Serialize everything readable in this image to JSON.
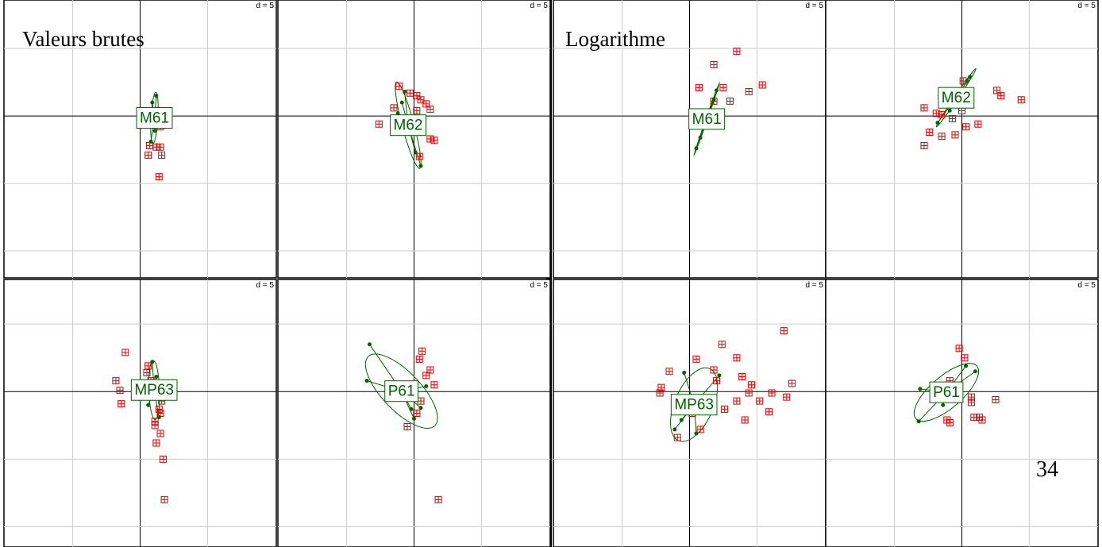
{
  "title_left": "Valeurs brutes",
  "title_right": "Logarithme",
  "page_number": "34",
  "chart_data": [
    {
      "type": "scatter",
      "label": "M61",
      "scale_label": "d = 5",
      "xlim": [
        -10.1,
        10.1
      ],
      "ylim": [
        -12,
        8.6
      ],
      "xticks": [
        -5,
        0,
        5
      ],
      "yticks": [
        -10,
        -5,
        0,
        5
      ],
      "grid": true,
      "color": "#e00000",
      "group_color": "#006400",
      "x": [
        0.7,
        1.5,
        1.2,
        0.6,
        1.6,
        1.4,
        1.5
      ],
      "y": [
        -2.2,
        -2.3,
        -2.3,
        -2.9,
        -2.9,
        -4.5,
        -0.8
      ],
      "group_x": [
        1.2,
        0.9,
        0.8,
        1.3,
        1.1
      ],
      "group_y": [
        1.5,
        1.0,
        -1.9,
        -0.2,
        -1.1
      ]
    },
    {
      "type": "scatter",
      "label": "M62",
      "scale_label": "d = 5",
      "xlim": [
        -10.1,
        10.1
      ],
      "ylim": [
        -12,
        8.6
      ],
      "xticks": [
        -5,
        0,
        5
      ],
      "yticks": [
        -10,
        -5,
        0,
        5
      ],
      "grid": true,
      "color": "#e00000",
      "group_color": "#006400",
      "x": [
        -1.1,
        -1.5,
        -2.6,
        -0.9,
        0.5,
        0.9,
        1.2,
        0.2,
        0.2,
        1.2,
        1.5,
        0.4,
        -0.3
      ],
      "y": [
        2.2,
        0.6,
        -0.6,
        -0.8,
        1.2,
        0.9,
        0.5,
        0.4,
        1.5,
        -1.7,
        -1.8,
        -3.0,
        1.7
      ],
      "group_x": [
        -0.9,
        -0.7,
        0.5,
        0.1,
        -1.2
      ],
      "group_y": [
        1.0,
        1.8,
        -3.7,
        -2.7,
        0.2
      ]
    },
    {
      "type": "scatter",
      "label": "M61",
      "scale_label": "d = 5",
      "xlim": [
        -10.1,
        10.1
      ],
      "ylim": [
        -12,
        8.6
      ],
      "xticks": [
        -5,
        0,
        5
      ],
      "yticks": [
        -10,
        -5,
        0,
        5
      ],
      "grid": true,
      "color": "#e00000",
      "group_color": "#006400",
      "x": [
        3.5,
        1.8,
        0.7,
        2.5,
        3.0,
        4.4,
        5.4,
        1.8,
        1.6
      ],
      "y": [
        4.8,
        3.8,
        2.1,
        2.1,
        1.1,
        1.8,
        2.3,
        1.1,
        -0.6
      ],
      "group_x": [
        2.0,
        0.5,
        0.8,
        1.8
      ],
      "group_y": [
        1.9,
        -2.4,
        -1.6,
        1.2
      ]
    },
    {
      "type": "scatter",
      "label": "M62",
      "scale_label": "d = 5",
      "xlim": [
        -10.1,
        10.1
      ],
      "ylim": [
        -12,
        8.6
      ],
      "xticks": [
        -5,
        0,
        5
      ],
      "yticks": [
        -10,
        -5,
        0,
        5
      ],
      "grid": true,
      "color": "#e00000",
      "group_color": "#006400",
      "x": [
        0.1,
        2.6,
        2.9,
        4.4,
        -2.8,
        -1.9,
        -1.5,
        -1.0,
        -2.4,
        -1.5,
        -0.5,
        0.3,
        1.2,
        -0.7,
        -2.8,
        0
      ],
      "y": [
        2.6,
        1.9,
        1.5,
        1.2,
        0.6,
        0.2,
        0.1,
        1.0,
        -1.2,
        -1.5,
        -1.4,
        -0.8,
        -0.6,
        -0.2,
        -2.2,
        0.4
      ],
      "group_x": [
        0.6,
        0.4,
        -1.8,
        -0.9
      ],
      "group_y": [
        2.9,
        2.6,
        -0.5,
        0.4
      ]
    },
    {
      "type": "scatter",
      "label": "MP63",
      "scale_label": "d = 5",
      "xlim": [
        -10.1,
        10.1
      ],
      "ylim": [
        -11.5,
        8.3
      ],
      "xticks": [
        -5,
        0,
        5
      ],
      "yticks": [
        -10,
        -5,
        0,
        5
      ],
      "grid": true,
      "color": "#e00000",
      "group_color": "#006400",
      "x": [
        -1.1,
        -1.8,
        -1.5,
        -1.4,
        0.5,
        0.8,
        0.9,
        1.4,
        1.1,
        1.5,
        1.2,
        1.7,
        1.8,
        0.8,
        1.5,
        0.6,
        1.1,
        1.6
      ],
      "y": [
        2.9,
        0.8,
        0.1,
        -0.9,
        1.4,
        0.8,
        -0.4,
        -1.3,
        -2.2,
        -3.1,
        -3.8,
        -5.0,
        -8.0,
        -0.1,
        -1.6,
        1.9,
        -2.5,
        -0.7
      ],
      "group_x": [
        0.9,
        1.2,
        0.6,
        1.4,
        1.1
      ],
      "group_y": [
        2.2,
        1.1,
        -1.0,
        -1.9,
        0.2
      ]
    },
    {
      "type": "scatter",
      "label": "P61",
      "scale_label": "d = 5",
      "xlim": [
        -10.1,
        10.1
      ],
      "ylim": [
        -11.5,
        8.3
      ],
      "xticks": [
        -5,
        0,
        5
      ],
      "yticks": [
        -10,
        -5,
        0,
        5
      ],
      "grid": true,
      "color": "#e00000",
      "group_color": "#006400",
      "x": [
        0.6,
        0.4,
        1.2,
        0.9,
        1.5,
        0,
        0.2,
        -0.5,
        1.8,
        0.5
      ],
      "y": [
        3.0,
        2.4,
        1.6,
        1.2,
        0.5,
        -0.3,
        -1.6,
        -2.6,
        -8.0,
        -0.7
      ],
      "group_x": [
        -3.3,
        -3.5,
        0,
        0.5,
        -0.2,
        0.9
      ],
      "group_y": [
        3.5,
        0.8,
        -2.0,
        -1.2,
        -1.3,
        0.4
      ]
    },
    {
      "type": "scatter",
      "label": "MP63",
      "scale_label": "d = 5",
      "xlim": [
        -10.1,
        10.1
      ],
      "ylim": [
        -11.5,
        8.3
      ],
      "xticks": [
        -5,
        0,
        5
      ],
      "yticks": [
        -10,
        -5,
        0,
        5
      ],
      "grid": true,
      "color": "#e00000",
      "group_color": "#006400",
      "x": [
        7.0,
        2.4,
        3.5,
        -1.5,
        0.5,
        -2.1,
        -2.2,
        1.8,
        3.9,
        4.6,
        7.6,
        6.1,
        7.2,
        4.1,
        5.9,
        -0.9,
        0.8,
        2.6,
        3.5,
        5.2,
        2.0,
        0.2,
        4.4
      ],
      "y": [
        4.5,
        3.5,
        2.5,
        1.5,
        2.4,
        0.3,
        -0.1,
        1.6,
        1.1,
        0.5,
        0.6,
        -0.1,
        -0.4,
        -2.1,
        -1.5,
        -3.4,
        -2.8,
        -1.3,
        -0.7,
        -0.7,
        0.8,
        -1.6,
        -0.1
      ],
      "group_x": [
        2.2,
        -1.1,
        -0.6,
        1.4,
        -0.4,
        0.5
      ],
      "group_y": [
        1.2,
        -2.8,
        -2.1,
        -0.4,
        1.4,
        -3.1
      ]
    },
    {
      "type": "scatter",
      "label": "P61",
      "scale_label": "d = 5",
      "xlim": [
        -10.1,
        10.1
      ],
      "ylim": [
        -11.5,
        8.3
      ],
      "xticks": [
        -5,
        0,
        5
      ],
      "yticks": [
        -10,
        -5,
        0,
        5
      ],
      "grid": true,
      "color": "#e00000",
      "group_color": "#006400",
      "x": [
        -0.2,
        0.2,
        -0.9,
        0.7,
        2.5,
        -1.1,
        -0.9,
        0.9,
        1.3,
        1.5,
        0.7
      ],
      "y": [
        3.2,
        2.5,
        0.8,
        -0.8,
        -0.6,
        -2.1,
        -2.3,
        -1.9,
        -1.9,
        -2.1,
        -0.4
      ],
      "group_x": [
        0.3,
        -3.2,
        -3.1,
        -1.4,
        -0.5,
        1.0
      ],
      "group_y": [
        1.9,
        -2.2,
        0.2,
        -1.0,
        -0.7,
        1.5
      ]
    }
  ]
}
